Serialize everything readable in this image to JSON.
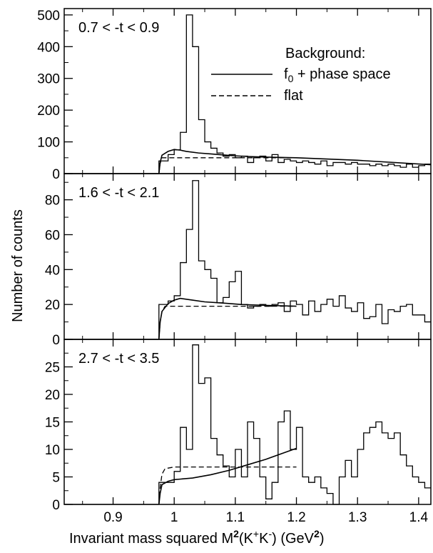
{
  "chart_data": {
    "type": "histogram",
    "ylabel": "Number of counts",
    "xlabel_parts": {
      "pre": "Invariant mass squared  M",
      "sup1": "2",
      "mid": "(K",
      "sup2": "+",
      "mid2": "K",
      "sup3": "-",
      "post": ")    (GeV",
      "sup4": "2",
      "end": ")"
    },
    "xlim": [
      0.82,
      1.42
    ],
    "xticks": [
      {
        "value": 0.9,
        "label": "0.9"
      },
      {
        "value": 1.0,
        "label": "1"
      },
      {
        "value": 1.1,
        "label": "1.1"
      },
      {
        "value": 1.2,
        "label": "1.2"
      },
      {
        "value": 1.3,
        "label": "1.3"
      },
      {
        "value": 1.4,
        "label": "1.4"
      }
    ],
    "legend": {
      "title": "Background:",
      "entries": [
        {
          "style": "solid",
          "label_main": "f",
          "label_sub": "0",
          "label_rest": "  + phase space"
        },
        {
          "style": "dashed",
          "label_main": "flat",
          "label_sub": "",
          "label_rest": ""
        }
      ]
    },
    "panels": [
      {
        "label": "0.7 < -t < 0.9",
        "ylim": [
          0,
          520
        ],
        "yticks": [
          {
            "value": 0,
            "label": "0"
          },
          {
            "value": 100,
            "label": "100"
          },
          {
            "value": 200,
            "label": "200"
          },
          {
            "value": 300,
            "label": "300"
          },
          {
            "value": 400,
            "label": "400"
          },
          {
            "value": 500,
            "label": "500"
          }
        ],
        "histogram": {
          "edges": [
            0.975,
            0.99,
            1.0,
            1.01,
            1.02,
            1.03,
            1.04,
            1.05,
            1.06,
            1.07,
            1.08,
            1.09,
            1.1,
            1.11,
            1.12,
            1.13,
            1.14,
            1.15,
            1.16,
            1.17,
            1.18,
            1.19,
            1.2,
            1.21,
            1.22,
            1.23,
            1.24,
            1.25,
            1.26,
            1.27,
            1.28,
            1.29,
            1.3,
            1.31,
            1.32,
            1.33,
            1.34,
            1.35,
            1.36,
            1.37,
            1.38,
            1.39,
            1.4,
            1.41,
            1.42
          ],
          "counts": [
            40,
            60,
            75,
            130,
            500,
            400,
            170,
            100,
            80,
            65,
            55,
            60,
            50,
            55,
            35,
            50,
            55,
            40,
            60,
            35,
            45,
            40,
            35,
            40,
            35,
            30,
            40,
            25,
            35,
            35,
            30,
            35,
            30,
            30,
            25,
            30,
            25,
            30,
            25,
            20,
            30,
            20,
            25,
            30
          ]
        },
        "curve_solid": [
          [
            0.975,
            0
          ],
          [
            0.977,
            35
          ],
          [
            0.98,
            58
          ],
          [
            0.99,
            70
          ],
          [
            1.0,
            76
          ],
          [
            1.01,
            74
          ],
          [
            1.02,
            70
          ],
          [
            1.04,
            65
          ],
          [
            1.06,
            62
          ],
          [
            1.08,
            59
          ],
          [
            1.1,
            56
          ],
          [
            1.12,
            54
          ],
          [
            1.15,
            52
          ],
          [
            1.2,
            50
          ],
          [
            1.3,
            42
          ],
          [
            1.42,
            28
          ]
        ],
        "curve_dashed": [
          [
            0.975,
            0
          ],
          [
            0.977,
            32
          ],
          [
            0.98,
            50
          ],
          [
            1.0,
            50
          ],
          [
            1.2,
            50
          ]
        ]
      },
      {
        "label": "1.6 < -t < 2.1",
        "ylim": [
          0,
          95
        ],
        "yticks": [
          {
            "value": 0,
            "label": "0"
          },
          {
            "value": 20,
            "label": "20"
          },
          {
            "value": 40,
            "label": "40"
          },
          {
            "value": 60,
            "label": "60"
          },
          {
            "value": 80,
            "label": "80"
          }
        ],
        "histogram": {
          "edges": [
            0.975,
            0.99,
            1.0,
            1.01,
            1.02,
            1.03,
            1.04,
            1.05,
            1.06,
            1.07,
            1.08,
            1.09,
            1.1,
            1.11,
            1.12,
            1.13,
            1.14,
            1.15,
            1.16,
            1.17,
            1.18,
            1.19,
            1.2,
            1.21,
            1.22,
            1.23,
            1.24,
            1.25,
            1.26,
            1.27,
            1.28,
            1.29,
            1.3,
            1.31,
            1.32,
            1.33,
            1.34,
            1.35,
            1.36,
            1.37,
            1.38,
            1.39,
            1.4,
            1.41,
            1.42
          ],
          "counts": [
            20,
            22,
            25,
            44,
            63,
            91,
            45,
            40,
            35,
            21,
            24,
            33,
            39,
            20,
            18,
            19,
            20,
            19,
            20,
            21,
            16,
            22,
            20,
            14,
            22,
            16,
            20,
            23,
            19,
            25,
            18,
            16,
            21,
            12,
            13,
            20,
            9,
            17,
            16,
            19,
            20,
            14,
            14,
            10
          ]
        },
        "curve_solid": [
          [
            0.975,
            0
          ],
          [
            0.977,
            10
          ],
          [
            0.98,
            16
          ],
          [
            0.99,
            20.5
          ],
          [
            1.0,
            22.5
          ],
          [
            1.01,
            23.5
          ],
          [
            1.03,
            22.5
          ],
          [
            1.05,
            21.5
          ],
          [
            1.08,
            20.8
          ],
          [
            1.11,
            20
          ],
          [
            1.15,
            19.5
          ],
          [
            1.2,
            19
          ]
        ],
        "curve_dashed": [
          [
            0.975,
            0
          ],
          [
            0.977,
            10
          ],
          [
            0.98,
            16
          ],
          [
            0.985,
            19
          ],
          [
            1.2,
            19
          ]
        ]
      },
      {
        "label": "2.7 < -t < 3.5",
        "ylim": [
          0,
          30
        ],
        "yticks": [
          {
            "value": 0,
            "label": "0"
          },
          {
            "value": 5,
            "label": "5"
          },
          {
            "value": 10,
            "label": "10"
          },
          {
            "value": 15,
            "label": "15"
          },
          {
            "value": 20,
            "label": "20"
          },
          {
            "value": 25,
            "label": "25"
          }
        ],
        "histogram": {
          "edges": [
            0.975,
            0.99,
            1.0,
            1.01,
            1.02,
            1.03,
            1.04,
            1.05,
            1.06,
            1.07,
            1.08,
            1.09,
            1.1,
            1.11,
            1.12,
            1.13,
            1.14,
            1.15,
            1.16,
            1.17,
            1.18,
            1.19,
            1.2,
            1.21,
            1.22,
            1.23,
            1.24,
            1.25,
            1.26,
            1.27,
            1.28,
            1.29,
            1.3,
            1.31,
            1.32,
            1.33,
            1.34,
            1.35,
            1.36,
            1.37,
            1.38,
            1.39,
            1.4,
            1.41,
            1.42
          ],
          "counts": [
            4,
            4,
            6,
            14,
            10,
            29,
            22,
            23,
            12,
            9,
            7,
            5,
            10,
            5,
            15,
            12,
            5,
            1,
            4,
            15,
            17,
            10,
            14,
            5,
            4,
            5,
            3,
            2,
            0,
            5,
            8,
            5,
            10,
            13,
            14,
            15,
            13,
            12,
            13,
            9,
            7,
            5,
            4,
            3
          ]
        },
        "curve_solid": [
          [
            0.975,
            0
          ],
          [
            0.977,
            2
          ],
          [
            0.98,
            3.6
          ],
          [
            0.99,
            4.2
          ],
          [
            1.0,
            4.5
          ],
          [
            1.03,
            4.8
          ],
          [
            1.06,
            5.4
          ],
          [
            1.09,
            6.2
          ],
          [
            1.12,
            7.2
          ],
          [
            1.15,
            8.2
          ],
          [
            1.18,
            9.4
          ],
          [
            1.2,
            10.2
          ]
        ],
        "curve_dashed": [
          [
            0.975,
            0
          ],
          [
            0.977,
            3
          ],
          [
            0.98,
            5.5
          ],
          [
            0.985,
            6.5
          ],
          [
            1.0,
            6.8
          ],
          [
            1.2,
            6.8
          ]
        ]
      }
    ]
  }
}
